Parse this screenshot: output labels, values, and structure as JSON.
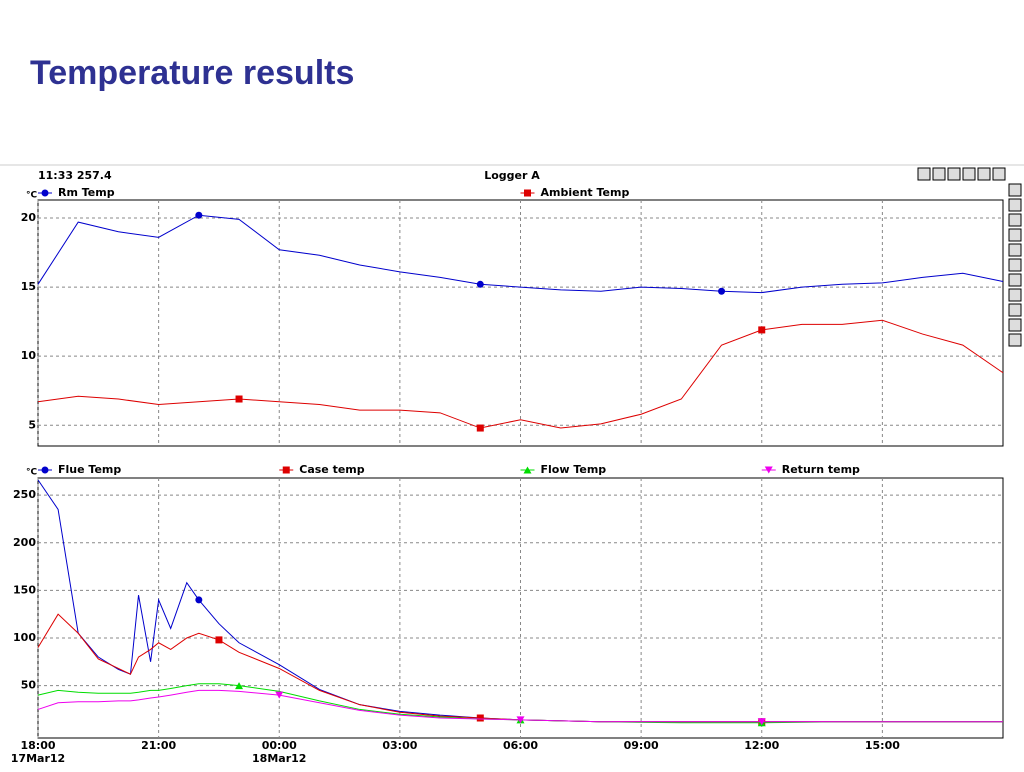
{
  "title": "Temperature results",
  "header": {
    "left": "11:33 257.4",
    "center": "Logger A"
  },
  "chart_data": [
    {
      "type": "line",
      "unit": "°C",
      "x": [
        0,
        1,
        2,
        3,
        4,
        5,
        6,
        7,
        8,
        9,
        10,
        11,
        12,
        13,
        14,
        15,
        16,
        17,
        18,
        19,
        20,
        21,
        22,
        23,
        24
      ],
      "xlim": [
        0,
        24
      ],
      "ylim": [
        3.5,
        21.3
      ],
      "yticks": [
        5,
        10,
        15,
        20
      ],
      "grid": true,
      "series": [
        {
          "name": "Rm Temp",
          "color": "#0000cc",
          "marker": "circle",
          "values": [
            15.2,
            19.7,
            19.0,
            18.6,
            20.2,
            19.9,
            17.7,
            17.3,
            16.6,
            16.1,
            15.7,
            15.2,
            15.0,
            14.8,
            14.7,
            15.0,
            14.9,
            14.7,
            14.6,
            15.0,
            15.2,
            15.3,
            15.7,
            16.0,
            15.4
          ]
        },
        {
          "name": "Ambient Temp",
          "color": "#dd0000",
          "marker": "square",
          "values": [
            6.7,
            7.1,
            6.9,
            6.5,
            6.7,
            6.9,
            6.7,
            6.5,
            6.1,
            6.1,
            5.9,
            4.8,
            5.4,
            4.8,
            5.1,
            5.8,
            6.9,
            10.8,
            11.9,
            12.3,
            12.3,
            12.6,
            11.6,
            10.8,
            8.8
          ]
        }
      ]
    },
    {
      "type": "line",
      "unit": "°C",
      "x": [
        0,
        0.5,
        1,
        1.5,
        2,
        2.3,
        2.5,
        2.8,
        3,
        3.3,
        3.7,
        4,
        4.5,
        5,
        6,
        7,
        8,
        9,
        10,
        11,
        12,
        14,
        16,
        18,
        20,
        22,
        24
      ],
      "xlim": [
        0,
        24
      ],
      "ylim": [
        -5,
        268
      ],
      "yticks": [
        50,
        100,
        150,
        200,
        250
      ],
      "grid": true,
      "xticks": [
        {
          "value": 0,
          "label": "18:00"
        },
        {
          "value": 3,
          "label": "21:00"
        },
        {
          "value": 6,
          "label": "00:00"
        },
        {
          "value": 9,
          "label": "03:00"
        },
        {
          "value": 12,
          "label": "06:00"
        },
        {
          "value": 15,
          "label": "09:00"
        },
        {
          "value": 18,
          "label": "12:00"
        },
        {
          "value": 21,
          "label": "15:00"
        }
      ],
      "xtick_dates": [
        {
          "value": 0,
          "label": "17Mar12"
        },
        {
          "value": 6,
          "label": "18Mar12"
        }
      ],
      "series": [
        {
          "name": "Flue Temp",
          "color": "#0000cc",
          "marker": "circle",
          "values": [
            266,
            235,
            105,
            80,
            67,
            62,
            145,
            75,
            140,
            110,
            158,
            140,
            115,
            95,
            72,
            46,
            30,
            23,
            19,
            16,
            14,
            12,
            12,
            12,
            12,
            12,
            12
          ]
        },
        {
          "name": "Case temp",
          "color": "#dd0000",
          "marker": "square",
          "values": [
            90,
            125,
            105,
            78,
            68,
            62,
            80,
            88,
            95,
            88,
            100,
            105,
            98,
            85,
            68,
            45,
            30,
            22,
            18,
            16,
            14,
            12,
            12,
            12,
            12,
            12,
            12
          ]
        },
        {
          "name": "Flow Temp",
          "color": "#00dd00",
          "marker": "triangle",
          "values": [
            40,
            45,
            43,
            42,
            42,
            42,
            43,
            45,
            45,
            47,
            50,
            52,
            52,
            50,
            44,
            34,
            25,
            20,
            17,
            15,
            14,
            12,
            11,
            11,
            12,
            12,
            12
          ]
        },
        {
          "name": "Return temp",
          "color": "#ee00ee",
          "marker": "triangle-down",
          "values": [
            25,
            32,
            33,
            33,
            34,
            34,
            35,
            37,
            38,
            40,
            43,
            45,
            45,
            44,
            40,
            32,
            24,
            19,
            16,
            15,
            14,
            12,
            12,
            12,
            12,
            12,
            12
          ]
        }
      ]
    }
  ]
}
